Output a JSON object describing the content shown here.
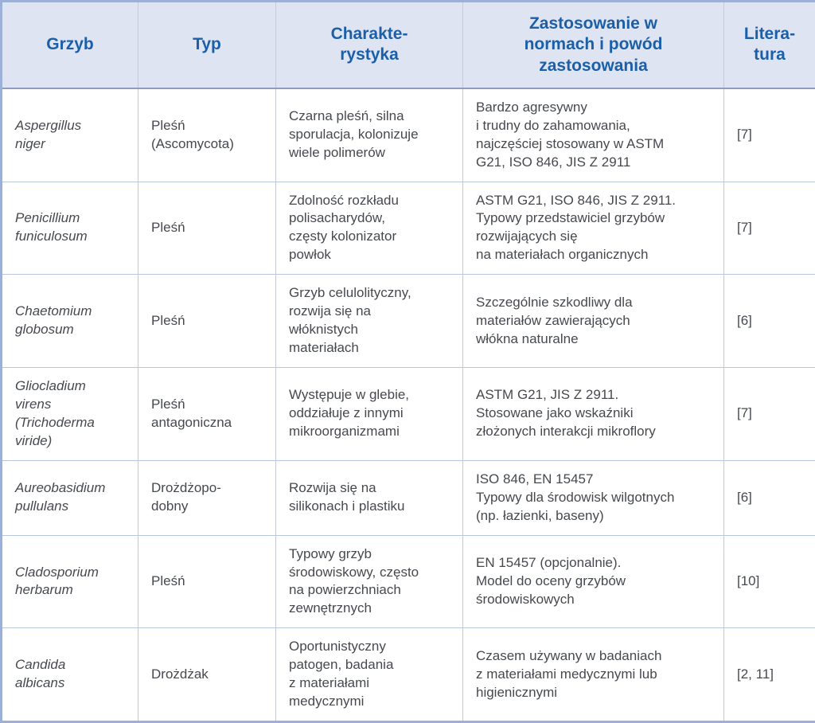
{
  "table": {
    "title_semantic": "Fungi used in biodegradation standards",
    "colors": {
      "header_bg": "#dfe4f2",
      "header_text": "#1b5fa8",
      "body_text": "#46494e",
      "outer_border": "#9db1d6",
      "header_separator": "#8e9cc0",
      "vertical_line": "#c4c9d6",
      "horizontal_line": "#b9c6e0"
    },
    "headers": [
      "Grzyb",
      "Typ",
      "Charakte-\nrystyka",
      "Zastosowanie w\nnormach i powód\nzastosowania",
      "Litera-\ntura"
    ],
    "rows": [
      {
        "grzyb": "Aspergillus\nniger",
        "typ": "Pleśń\n(Ascomycota)",
        "charakterystyka": "Czarna pleśń, silna\nsporulacja, kolonizuje\nwiele polimerów",
        "zastosowanie": "Bardzo agresywny\ni trudny do zahamowania,\nnajczęściej stosowany w ASTM\nG21, ISO 846, JIS Z 2911",
        "literatura": "[7]"
      },
      {
        "grzyb": "Penicillium\nfuniculosum",
        "typ": "Pleśń",
        "charakterystyka": "Zdolność rozkładu\npolisacharydów,\nczęsty kolonizator\npowłok",
        "zastosowanie": "ASTM G21, ISO 846, JIS Z 2911.\nTypowy przedstawiciel grzybów\nrozwijających się\nna materiałach organicznych",
        "literatura": "[7]"
      },
      {
        "grzyb": "Chaetomium\nglobosum",
        "typ": "Pleśń",
        "charakterystyka": "Grzyb celulolityczny,\nrozwija się na\nwłóknistych\nmateriałach",
        "zastosowanie": "Szczególnie szkodliwy dla\nmateriałów zawierających\nwłókna naturalne",
        "literatura": "[6]"
      },
      {
        "grzyb": "Gliocladium\nvirens\n(Trichoderma\nviride)",
        "typ": "Pleśń\nantagoniczna",
        "charakterystyka": "Występuje w glebie,\noddziałuje z innymi\nmikroorganizmami",
        "zastosowanie": "ASTM G21, JIS Z 2911.\nStosowane jako wskaźniki\nzłożonych interakcji mikroflory",
        "literatura": "[7]"
      },
      {
        "grzyb": "Aureobasidium\npullulans",
        "typ": "Drożdżopo-\ndobny",
        "charakterystyka": "Rozwija się na\nsilikonach i plastiku",
        "zastosowanie": "ISO 846, EN 15457\nTypowy dla środowisk wilgotnych\n(np. łazienki, baseny)",
        "literatura": "[6]"
      },
      {
        "grzyb": "Cladosporium\nherbarum",
        "typ": "Pleśń",
        "charakterystyka": "Typowy grzyb\nśrodowiskowy, często\nna powierzchniach\nzewnętrznych",
        "zastosowanie": "EN 15457 (opcjonalnie).\nModel do oceny grzybów\nśrodowiskowych",
        "literatura": "[10]"
      },
      {
        "grzyb": "Candida\nalbicans",
        "typ": "Drożdżak",
        "charakterystyka": "Oportunistyczny\npatogen, badania\nz materiałami\nmedycznymi",
        "zastosowanie": "Czasem używany w badaniach\nz materiałami medycznymi lub\nhigienicznymi",
        "literatura": "[2, 11]"
      }
    ]
  }
}
